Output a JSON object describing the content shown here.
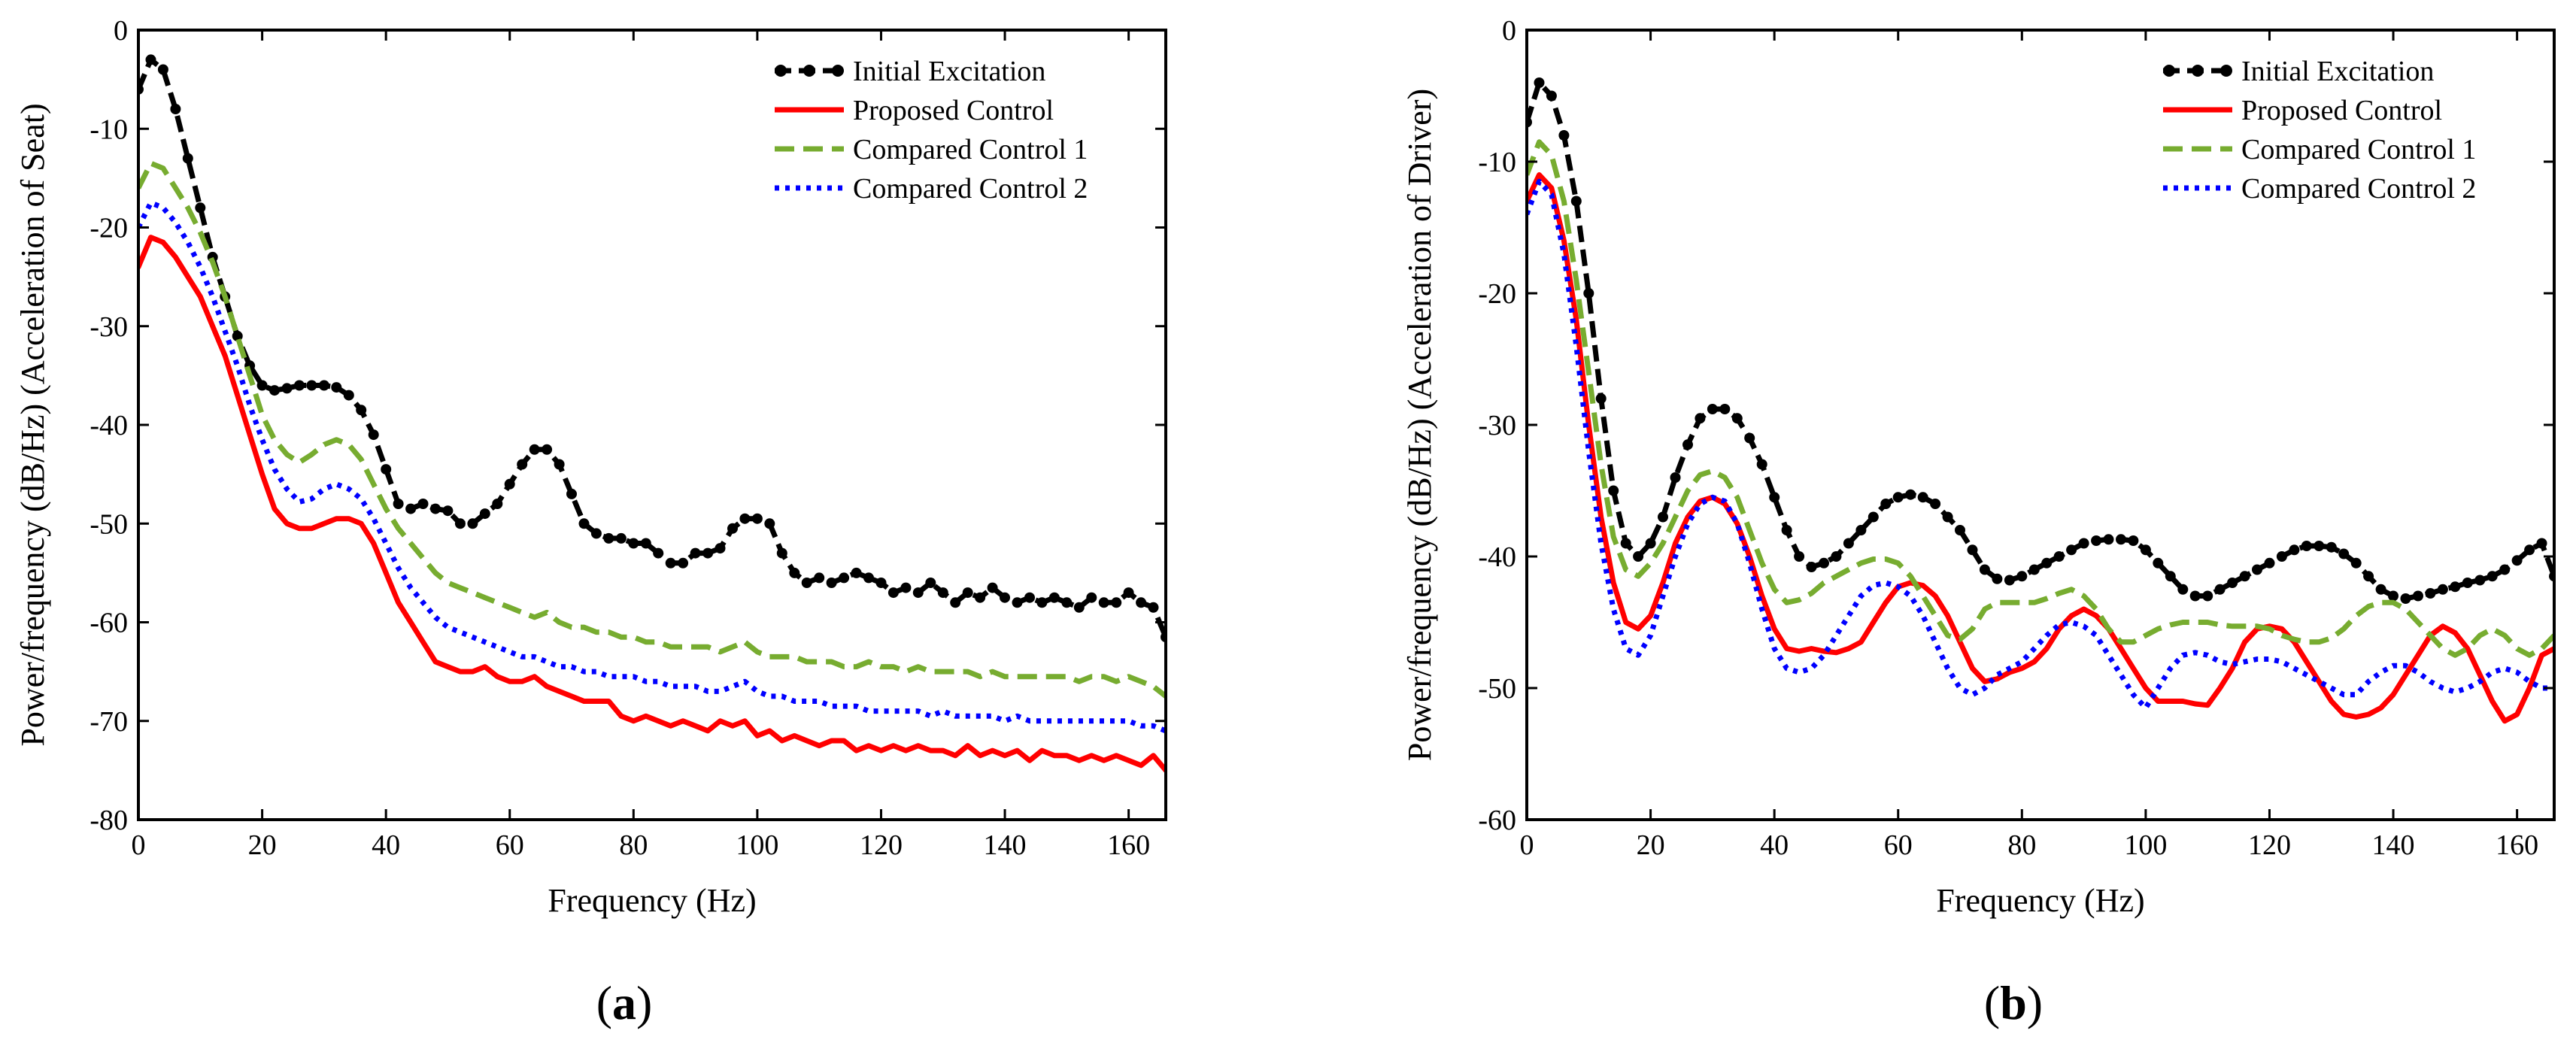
{
  "chart_data": [
    {
      "type": "line",
      "panel": "a",
      "caption_open": "(",
      "caption_letter": "a",
      "caption_close": ")",
      "title": "",
      "xlabel": "Frequency (Hz)",
      "ylabel": "Power/frequency (dB/Hz) (Acceleration of Seat)",
      "xlim": [
        0,
        166
      ],
      "ylim": [
        -80,
        0
      ],
      "xticks": [
        0,
        20,
        40,
        60,
        80,
        100,
        120,
        140,
        160
      ],
      "yticks": [
        0,
        -10,
        -20,
        -30,
        -40,
        -50,
        -60,
        -70,
        -80
      ],
      "legend_position": "top-right",
      "x": [
        0,
        2,
        4,
        6,
        8,
        10,
        12,
        14,
        16,
        18,
        20,
        22,
        24,
        26,
        28,
        30,
        32,
        34,
        36,
        38,
        40,
        42,
        44,
        46,
        48,
        50,
        52,
        54,
        56,
        58,
        60,
        62,
        64,
        66,
        68,
        70,
        72,
        74,
        76,
        78,
        80,
        82,
        84,
        86,
        88,
        90,
        92,
        94,
        96,
        98,
        100,
        102,
        104,
        106,
        108,
        110,
        112,
        114,
        116,
        118,
        120,
        122,
        124,
        126,
        128,
        130,
        132,
        134,
        136,
        138,
        140,
        142,
        144,
        146,
        148,
        150,
        152,
        154,
        156,
        158,
        160,
        162,
        164,
        166
      ],
      "series": [
        {
          "name": "Initial Excitation",
          "color": "#000000",
          "style": "dash-marker",
          "values": [
            -6,
            -3,
            -4,
            -8,
            -13,
            -18,
            -23,
            -27,
            -31,
            -34,
            -36,
            -36.5,
            -36.3,
            -36,
            -36,
            -36,
            -36.2,
            -37,
            -38.5,
            -41,
            -44.5,
            -48,
            -48.5,
            -48,
            -48.5,
            -48.7,
            -50,
            -50,
            -49,
            -48,
            -46,
            -44,
            -42.5,
            -42.5,
            -44,
            -47,
            -50,
            -51,
            -51.5,
            -51.5,
            -52,
            -52,
            -53,
            -54,
            -54,
            -53,
            -53,
            -52.5,
            -50.5,
            -49.5,
            -49.5,
            -50,
            -53,
            -55,
            -56,
            -55.5,
            -56,
            -55.5,
            -55,
            -55.5,
            -56,
            -57,
            -56.5,
            -57,
            -56,
            -57,
            -58,
            -57,
            -57.5,
            -56.5,
            -57.5,
            -58,
            -57.5,
            -58,
            -57.5,
            -58,
            -58.5,
            -57.5,
            -58,
            -58,
            -57,
            -58,
            -58.5,
            -61.5
          ]
        },
        {
          "name": "Proposed Control",
          "color": "#ff0000",
          "style": "solid",
          "values": [
            -24,
            -21,
            -21.5,
            -23,
            -25,
            -27,
            -30,
            -33,
            -37,
            -41,
            -45,
            -48.5,
            -50,
            -50.5,
            -50.5,
            -50,
            -49.5,
            -49.5,
            -50,
            -52,
            -55,
            -58,
            -60,
            -62,
            -64,
            -64.5,
            -65,
            -65,
            -64.5,
            -65.5,
            -66,
            -66,
            -65.5,
            -66.5,
            -67,
            -67.5,
            -68,
            -68,
            -68,
            -69.5,
            -70,
            -69.5,
            -70,
            -70.5,
            -70,
            -70.5,
            -71,
            -70,
            -70.5,
            -70,
            -71.5,
            -71,
            -72,
            -71.5,
            -72,
            -72.5,
            -72,
            -72,
            -73,
            -72.5,
            -73,
            -72.5,
            -73,
            -72.5,
            -73,
            -73,
            -73.5,
            -72.5,
            -73.5,
            -73,
            -73.5,
            -73,
            -74,
            -73,
            -73.5,
            -73.5,
            -74,
            -73.5,
            -74,
            -73.5,
            -74,
            -74.5,
            -73.5,
            -75
          ]
        },
        {
          "name": "Compared Control 1",
          "color": "#77ac30",
          "style": "dash",
          "values": [
            -16,
            -13.5,
            -14,
            -16,
            -18,
            -20.5,
            -23.5,
            -27,
            -31,
            -35,
            -39,
            -41.5,
            -43,
            -43.8,
            -43,
            -42,
            -41.5,
            -42,
            -43.5,
            -46,
            -48.5,
            -50.5,
            -52,
            -53.5,
            -55,
            -56,
            -56.5,
            -57,
            -57.5,
            -58,
            -58.5,
            -59,
            -59.5,
            -59,
            -60,
            -60.5,
            -60.5,
            -61,
            -61,
            -61.5,
            -61.5,
            -62,
            -62,
            -62.5,
            -62.5,
            -62.5,
            -62.5,
            -63,
            -62.5,
            -62,
            -63,
            -63.5,
            -63.5,
            -63.5,
            -64,
            -64,
            -64,
            -64.5,
            -64.5,
            -64,
            -64.5,
            -64.5,
            -65,
            -64.5,
            -65,
            -65,
            -65,
            -65,
            -65.5,
            -65,
            -65.5,
            -65.5,
            -65.5,
            -65.5,
            -65.5,
            -65.5,
            -66,
            -65.5,
            -65.5,
            -66,
            -65.5,
            -66,
            -66.5,
            -67.5
          ]
        },
        {
          "name": "Compared Control 2",
          "color": "#0000ff",
          "style": "dot",
          "values": [
            -20,
            -17.5,
            -18,
            -19.5,
            -21.5,
            -24,
            -27,
            -30.5,
            -34,
            -38,
            -41.5,
            -44.5,
            -46.5,
            -47.8,
            -47.5,
            -46.5,
            -46,
            -46.5,
            -47.5,
            -49.5,
            -52,
            -54.5,
            -56.5,
            -58,
            -59.5,
            -60.5,
            -61,
            -61.5,
            -62,
            -62.5,
            -63,
            -63.5,
            -63.5,
            -64,
            -64.5,
            -64.5,
            -65,
            -65,
            -65.5,
            -65.5,
            -65.5,
            -66,
            -66,
            -66.5,
            -66.5,
            -66.5,
            -67,
            -67,
            -66.5,
            -66,
            -67,
            -67.5,
            -67.5,
            -68,
            -68,
            -68,
            -68.5,
            -68.5,
            -68.5,
            -69,
            -69,
            -69,
            -69,
            -69,
            -69.5,
            -69,
            -69.5,
            -69.5,
            -69.5,
            -69.5,
            -70,
            -69.5,
            -70,
            -70,
            -70,
            -70,
            -70,
            -70,
            -70,
            -70,
            -70,
            -70.5,
            -70.5,
            -71
          ]
        }
      ]
    },
    {
      "type": "line",
      "panel": "b",
      "caption_open": "(",
      "caption_letter": "b",
      "caption_close": ")",
      "title": "",
      "xlabel": "Frequency (Hz)",
      "ylabel": "Power/frequency (dB/Hz) (Acceleration of Driver)",
      "xlim": [
        0,
        166
      ],
      "ylim": [
        -60,
        0
      ],
      "xticks": [
        0,
        20,
        40,
        60,
        80,
        100,
        120,
        140,
        160
      ],
      "yticks": [
        0,
        -10,
        -20,
        -30,
        -40,
        -50,
        -60
      ],
      "legend_position": "top-right",
      "x": [
        0,
        2,
        4,
        6,
        8,
        10,
        12,
        14,
        16,
        18,
        20,
        22,
        24,
        26,
        28,
        30,
        32,
        34,
        36,
        38,
        40,
        42,
        44,
        46,
        48,
        50,
        52,
        54,
        56,
        58,
        60,
        62,
        64,
        66,
        68,
        70,
        72,
        74,
        76,
        78,
        80,
        82,
        84,
        86,
        88,
        90,
        92,
        94,
        96,
        98,
        100,
        102,
        104,
        106,
        108,
        110,
        112,
        114,
        116,
        118,
        120,
        122,
        124,
        126,
        128,
        130,
        132,
        134,
        136,
        138,
        140,
        142,
        144,
        146,
        148,
        150,
        152,
        154,
        156,
        158,
        160,
        162,
        164,
        166
      ],
      "series": [
        {
          "name": "Initial Excitation",
          "color": "#000000",
          "style": "dash-marker",
          "values": [
            -7,
            -4,
            -5,
            -8,
            -13,
            -20,
            -28,
            -35,
            -39,
            -40,
            -39,
            -37,
            -34,
            -31.5,
            -29.5,
            -28.8,
            -28.8,
            -29.5,
            -31,
            -33,
            -35.5,
            -38,
            -40,
            -40.8,
            -40.5,
            -40,
            -39,
            -38,
            -37,
            -36,
            -35.5,
            -35.3,
            -35.5,
            -36,
            -37,
            -38,
            -39.5,
            -41,
            -41.7,
            -41.8,
            -41.5,
            -41,
            -40.5,
            -40,
            -39.5,
            -39,
            -38.8,
            -38.7,
            -38.7,
            -38.8,
            -39.5,
            -40.5,
            -41.5,
            -42.5,
            -43,
            -43,
            -42.5,
            -42,
            -41.5,
            -41,
            -40.5,
            -40,
            -39.5,
            -39.2,
            -39.2,
            -39.3,
            -39.8,
            -40.5,
            -41.5,
            -42.5,
            -43,
            -43.2,
            -43,
            -42.8,
            -42.5,
            -42.3,
            -42,
            -41.8,
            -41.5,
            -41,
            -40.3,
            -39.5,
            -39,
            -41.5
          ]
        },
        {
          "name": "Proposed Control",
          "color": "#ff0000",
          "style": "solid",
          "values": [
            -13,
            -11,
            -12,
            -16,
            -22,
            -30,
            -37,
            -42,
            -45,
            -45.5,
            -44.5,
            -42,
            -39,
            -37,
            -35.8,
            -35.5,
            -36,
            -37.5,
            -40,
            -43,
            -45.5,
            -47,
            -47.2,
            -47,
            -47.2,
            -47.3,
            -47,
            -46.5,
            -45,
            -43.5,
            -42.3,
            -42,
            -42.2,
            -43,
            -44.5,
            -46.5,
            -48.5,
            -49.5,
            -49.3,
            -48.8,
            -48.5,
            -48,
            -47,
            -45.5,
            -44.5,
            -44,
            -44.5,
            -45.5,
            -47,
            -48.5,
            -50,
            -51,
            -51,
            -51,
            -51.2,
            -51.3,
            -50,
            -48.5,
            -46.5,
            -45.5,
            -45.3,
            -45.5,
            -46.5,
            -48,
            -49.5,
            -51,
            -52,
            -52.2,
            -52,
            -51.5,
            -50.5,
            -49,
            -47.5,
            -46,
            -45.3,
            -45.8,
            -47,
            -49,
            -51,
            -52.5,
            -52,
            -50,
            -47.5,
            -47
          ]
        },
        {
          "name": "Compared Control 1",
          "color": "#77ac30",
          "style": "dash",
          "values": [
            -11,
            -8.5,
            -9.5,
            -13,
            -19,
            -26,
            -33,
            -38.5,
            -41,
            -41.5,
            -40.5,
            -39,
            -37,
            -35,
            -33.8,
            -33.5,
            -34,
            -35.5,
            -38,
            -40.5,
            -42.5,
            -43.5,
            -43.3,
            -42.8,
            -42,
            -41.5,
            -41,
            -40.5,
            -40.2,
            -40.2,
            -40.5,
            -41.5,
            -43,
            -44.5,
            -46,
            -46.3,
            -45.5,
            -44,
            -43.5,
            -43.5,
            -43.5,
            -43.5,
            -43.2,
            -42.8,
            -42.5,
            -43,
            -44,
            -45.5,
            -46.5,
            -46.5,
            -46,
            -45.5,
            -45.2,
            -45,
            -45,
            -45,
            -45.2,
            -45.3,
            -45.3,
            -45.3,
            -45.5,
            -46,
            -46.3,
            -46.5,
            -46.5,
            -46.2,
            -45.5,
            -44.5,
            -43.8,
            -43.5,
            -43.5,
            -44,
            -45,
            -46,
            -47,
            -47.5,
            -47,
            -46,
            -45.5,
            -46,
            -47,
            -47.5,
            -47,
            -46
          ]
        },
        {
          "name": "Compared Control 2",
          "color": "#0000ff",
          "style": "dot",
          "values": [
            -14,
            -11.5,
            -12.5,
            -17,
            -24,
            -32,
            -39,
            -44,
            -47,
            -47.5,
            -46,
            -43,
            -40,
            -37.5,
            -36,
            -35.5,
            -35.8,
            -37.5,
            -40.5,
            -44,
            -47,
            -48.5,
            -48.8,
            -48.5,
            -47.5,
            -46,
            -44.5,
            -43,
            -42.2,
            -42,
            -42.3,
            -43,
            -44.5,
            -46.5,
            -48.5,
            -50,
            -50.5,
            -50,
            -49,
            -48.5,
            -48,
            -47,
            -46,
            -45.2,
            -45,
            -45.3,
            -46,
            -47.5,
            -49,
            -50.5,
            -51.5,
            -50,
            -48.5,
            -47.5,
            -47.3,
            -47.5,
            -48,
            -48.2,
            -48,
            -47.8,
            -47.8,
            -48,
            -48.5,
            -49,
            -49.5,
            -50,
            -50.5,
            -50.5,
            -49.5,
            -48.8,
            -48.3,
            -48.3,
            -48.8,
            -49.5,
            -50,
            -50.3,
            -50,
            -49.5,
            -48.8,
            -48.5,
            -48.8,
            -49.5,
            -50,
            -50
          ]
        }
      ]
    }
  ]
}
